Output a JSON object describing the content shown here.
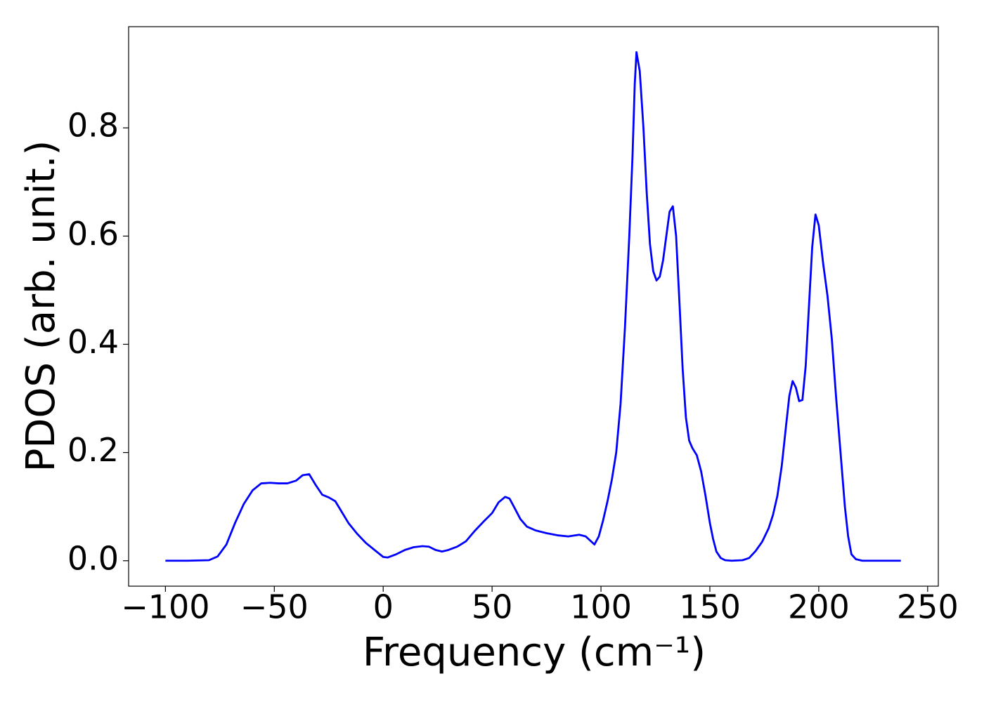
{
  "chart_data": {
    "type": "line",
    "x_label": "Frequency (cm⁻¹)",
    "y_label": "PDOS (arb. unit.)",
    "xlim": [
      -116.9,
      254.9
    ],
    "ylim": [
      -0.047,
      0.987
    ],
    "xticks": [
      {
        "value": -100,
        "label": "−100"
      },
      {
        "value": -50,
        "label": "−50"
      },
      0,
      50,
      100,
      150,
      200,
      250
    ],
    "yticks": [
      {
        "value": 0,
        "label": "0.0"
      },
      0.2,
      0.4,
      0.6,
      0.8
    ],
    "grid": false,
    "series": [
      {
        "color": "#0000ff",
        "x": [
          -100,
          -90,
          -80,
          -76,
          -72,
          -68,
          -64,
          -60,
          -56,
          -52,
          -48,
          -44,
          -40,
          -37,
          -34,
          -31,
          -28,
          -25,
          -22,
          -19,
          -16,
          -12,
          -8,
          -4,
          0,
          2,
          6,
          10,
          14,
          18,
          21,
          24,
          27,
          30,
          34,
          38,
          42,
          46,
          50,
          53,
          56,
          58,
          60,
          63,
          66,
          70,
          75,
          80,
          85,
          90,
          93,
          97,
          99,
          101,
          103,
          105,
          107,
          109,
          111,
          113,
          114.5,
          115.5,
          116.3,
          117.8,
          119.5,
          121,
          122.5,
          124,
          125.5,
          127,
          128.5,
          130,
          131.5,
          133,
          134.5,
          136,
          137.5,
          139,
          140.5,
          142,
          144,
          146,
          148,
          150,
          151.5,
          153,
          155,
          157,
          160,
          165,
          168,
          171,
          174,
          177,
          179,
          181,
          183,
          185,
          186.5,
          188,
          189.5,
          191,
          192.5,
          194,
          195.5,
          197,
          198.5,
          200,
          202,
          204,
          206,
          208,
          210,
          212,
          213.5,
          215,
          217,
          220,
          230,
          237.7
        ],
        "values": [
          0,
          0,
          0.001,
          0.008,
          0.03,
          0.07,
          0.105,
          0.13,
          0.143,
          0.144,
          0.143,
          0.143,
          0.148,
          0.158,
          0.16,
          0.14,
          0.122,
          0.117,
          0.11,
          0.09,
          0.07,
          0.05,
          0.033,
          0.02,
          0.007,
          0.006,
          0.012,
          0.02,
          0.025,
          0.027,
          0.026,
          0.02,
          0.017,
          0.02,
          0.026,
          0.036,
          0.055,
          0.072,
          0.088,
          0.108,
          0.118,
          0.115,
          0.1,
          0.077,
          0.063,
          0.056,
          0.051,
          0.047,
          0.045,
          0.048,
          0.045,
          0.03,
          0.045,
          0.075,
          0.11,
          0.15,
          0.2,
          0.29,
          0.43,
          0.6,
          0.75,
          0.88,
          0.94,
          0.905,
          0.8,
          0.68,
          0.585,
          0.535,
          0.518,
          0.525,
          0.555,
          0.6,
          0.645,
          0.655,
          0.6,
          0.48,
          0.355,
          0.265,
          0.222,
          0.208,
          0.195,
          0.165,
          0.12,
          0.07,
          0.04,
          0.017,
          0.005,
          0.001,
          0,
          0.001,
          0.005,
          0.018,
          0.035,
          0.06,
          0.085,
          0.12,
          0.175,
          0.25,
          0.305,
          0.332,
          0.32,
          0.295,
          0.297,
          0.36,
          0.47,
          0.58,
          0.64,
          0.62,
          0.55,
          0.49,
          0.41,
          0.3,
          0.2,
          0.1,
          0.045,
          0.012,
          0.003,
          0,
          0,
          0
        ]
      }
    ]
  }
}
